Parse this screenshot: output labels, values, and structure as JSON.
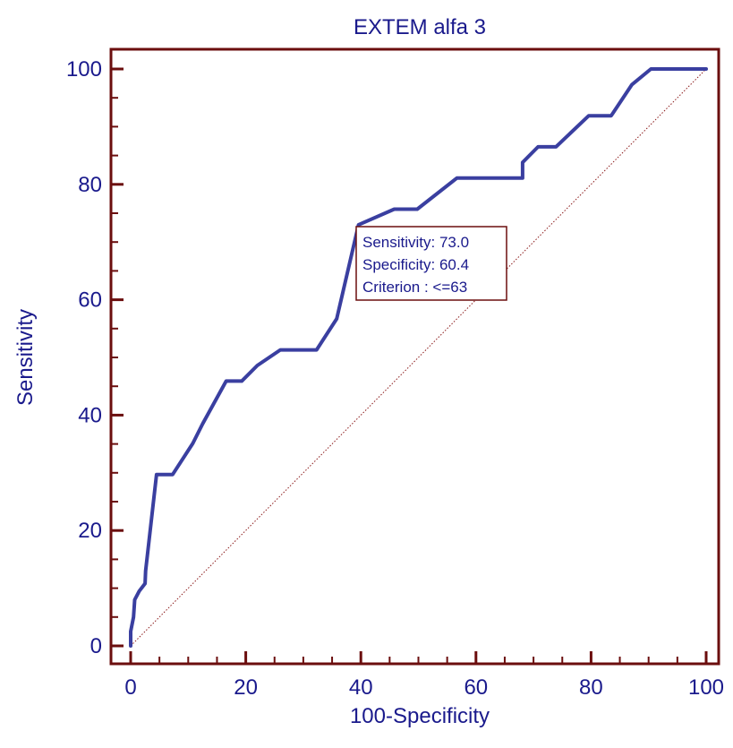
{
  "chart_data": {
    "type": "line",
    "title": "EXTEM alfa 3",
    "xlabel": "100-Specificity",
    "ylabel": "Sensitivity",
    "xlim": [
      0,
      100
    ],
    "ylim": [
      0,
      100
    ],
    "x_ticks": [
      0,
      20,
      40,
      60,
      80,
      100
    ],
    "y_ticks": [
      0,
      20,
      40,
      60,
      80,
      100
    ],
    "grid": false,
    "series": [
      {
        "color": "#3a3fa0",
        "points": [
          [
            0,
            0
          ],
          [
            0,
            2.5
          ],
          [
            0.5,
            5
          ],
          [
            0.7,
            8
          ],
          [
            1.5,
            9.5
          ],
          [
            2.5,
            10.8
          ],
          [
            2.6,
            13
          ],
          [
            4.5,
            29.7
          ],
          [
            7.3,
            29.7
          ],
          [
            10.8,
            35.1
          ],
          [
            12.5,
            38.5
          ],
          [
            16.6,
            45.9
          ],
          [
            19.3,
            45.9
          ],
          [
            22,
            48.6
          ],
          [
            26,
            51.3
          ],
          [
            32.3,
            51.3
          ],
          [
            35.8,
            56.7
          ],
          [
            39.6,
            73.0
          ],
          [
            45.8,
            75.7
          ],
          [
            49.8,
            75.7
          ],
          [
            56.7,
            81.1
          ],
          [
            68.1,
            81.1
          ],
          [
            68.1,
            83.8
          ],
          [
            70.8,
            86.5
          ],
          [
            73.9,
            86.5
          ],
          [
            79.6,
            91.9
          ],
          [
            83.5,
            91.9
          ],
          [
            87.1,
            97.3
          ],
          [
            90.4,
            100
          ],
          [
            100,
            100
          ]
        ]
      }
    ],
    "reference_line": {
      "color": "#8b1a1a",
      "points": [
        [
          0,
          0
        ],
        [
          100,
          100
        ]
      ]
    },
    "annotation": {
      "lines": [
        "Sensitivity: 73.0",
        "Specificity: 60.4",
        "Criterion : <=63"
      ],
      "point": [
        39.6,
        73.0
      ]
    },
    "colors": {
      "frame": "#6b0e0e",
      "text": "#1a1a8c",
      "curve": "#3a3fa0",
      "diagonal": "#8b1a1a"
    }
  }
}
